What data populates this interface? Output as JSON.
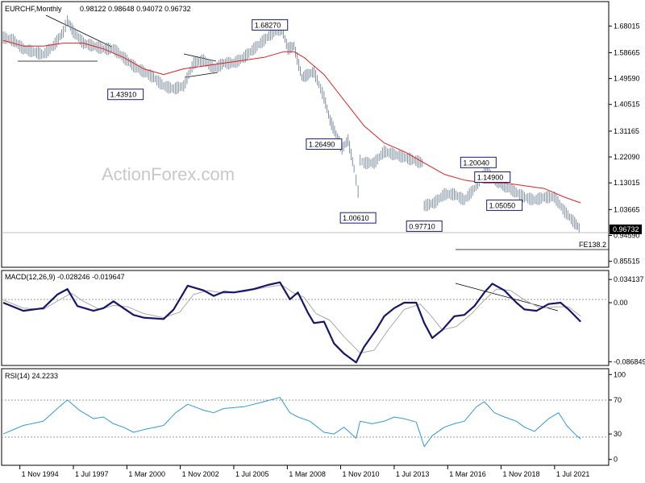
{
  "header": {
    "symbol": "EURCHF,Monthly",
    "ohlc": "0.98122 0.98648 0.94072 0.96732"
  },
  "watermark": "ActionForex.com",
  "colors": {
    "bars": "#8090a0",
    "ma": "#e02020",
    "macd": "#16166b",
    "signal": "#aaaaaa",
    "rsi": "#3399dd",
    "guide": "#999999",
    "label_border": "#1a1a7a"
  },
  "x_ticks": [
    "1 Nov 1994",
    "1 Jul 1997",
    "1 Mar 2000",
    "1 Nov 2002",
    "1 Jul 2005",
    "1 Mar 2008",
    "1 Nov 2010",
    "1 Jul 2013",
    "1 Mar 2016",
    "1 Nov 2018",
    "1 Jul 2021"
  ],
  "chart_data": [
    {
      "type": "line",
      "title": "EURCHF,Monthly",
      "y_ticks": [
        "1.68015",
        "1.58665",
        "1.49590",
        "1.40515",
        "1.31165",
        "1.22090",
        "1.13015",
        "1.03665",
        "0.94590",
        "0.85515"
      ],
      "ylim": [
        0.84,
        1.76
      ],
      "xlim": [
        1994.0,
        2024.0
      ],
      "current_price": "0.96732",
      "fe_label": "FE138.2",
      "fe_level": 0.914,
      "annotations": [
        {
          "label": "1.68270",
          "x": 2007.3,
          "y": 1.6827
        },
        {
          "label": "1.43910",
          "x": 2000.1,
          "y": 1.4391
        },
        {
          "label": "1.26490",
          "x": 2010.0,
          "y": 1.2649
        },
        {
          "label": "1.00610",
          "x": 2011.7,
          "y": 1.0061
        },
        {
          "label": "0.97710",
          "x": 2015.0,
          "y": 0.9771
        },
        {
          "label": "1.20040",
          "x": 2017.7,
          "y": 1.2004
        },
        {
          "label": "1.14900",
          "x": 2018.4,
          "y": 1.149
        },
        {
          "label": "1.05050",
          "x": 2019.0,
          "y": 1.0505
        }
      ],
      "series": [
        {
          "values": [
            [
              1994.0,
              1.64
            ],
            [
              1994.5,
              1.63
            ],
            [
              1995.0,
              1.6
            ],
            [
              1995.5,
              1.59
            ],
            [
              1996.0,
              1.58
            ],
            [
              1996.5,
              1.61
            ],
            [
              1997.0,
              1.66
            ],
            [
              1997.2,
              1.7
            ],
            [
              1997.5,
              1.66
            ],
            [
              1998.0,
              1.62
            ],
            [
              1998.5,
              1.61
            ],
            [
              1999.0,
              1.6
            ],
            [
              1999.5,
              1.6
            ],
            [
              2000.0,
              1.57
            ],
            [
              2000.5,
              1.54
            ],
            [
              2001.0,
              1.52
            ],
            [
              2001.5,
              1.5
            ],
            [
              2002.0,
              1.47
            ],
            [
              2002.5,
              1.46
            ],
            [
              2003.0,
              1.47
            ],
            [
              2003.5,
              1.55
            ],
            [
              2004.0,
              1.56
            ],
            [
              2004.5,
              1.53
            ],
            [
              2005.0,
              1.55
            ],
            [
              2005.5,
              1.55
            ],
            [
              2006.0,
              1.57
            ],
            [
              2006.5,
              1.6
            ],
            [
              2007.0,
              1.63
            ],
            [
              2007.5,
              1.66
            ],
            [
              2007.9,
              1.67
            ],
            [
              2008.2,
              1.6
            ],
            [
              2008.5,
              1.61
            ],
            [
              2008.9,
              1.5
            ],
            [
              2009.2,
              1.51
            ],
            [
              2009.5,
              1.52
            ],
            [
              2010.0,
              1.43
            ],
            [
              2010.3,
              1.35
            ],
            [
              2010.6,
              1.3
            ],
            [
              2010.9,
              1.25
            ],
            [
              2011.2,
              1.28
            ],
            [
              2011.5,
              1.18
            ],
            [
              2011.7,
              1.1
            ],
            [
              2011.8,
              1.21
            ],
            [
              2012.0,
              1.2
            ],
            [
              2012.5,
              1.2
            ],
            [
              2013.0,
              1.24
            ],
            [
              2013.5,
              1.23
            ],
            [
              2014.0,
              1.22
            ],
            [
              2014.5,
              1.21
            ],
            [
              2014.9,
              1.2
            ],
            [
              2015.0,
              1.05
            ],
            [
              2015.5,
              1.06
            ],
            [
              2016.0,
              1.09
            ],
            [
              2016.5,
              1.09
            ],
            [
              2017.0,
              1.07
            ],
            [
              2017.5,
              1.11
            ],
            [
              2018.0,
              1.17
            ],
            [
              2018.3,
              1.16
            ],
            [
              2018.7,
              1.13
            ],
            [
              2019.0,
              1.12
            ],
            [
              2019.5,
              1.1
            ],
            [
              2020.0,
              1.08
            ],
            [
              2020.5,
              1.07
            ],
            [
              2021.0,
              1.08
            ],
            [
              2021.5,
              1.08
            ],
            [
              2022.0,
              1.03
            ],
            [
              2022.5,
              0.99
            ],
            [
              2022.8,
              0.96732
            ]
          ]
        },
        {
          "values": [
            [
              1994.0,
              1.63
            ],
            [
              1995.0,
              1.61
            ],
            [
              1996.0,
              1.61
            ],
            [
              1997.0,
              1.62
            ],
            [
              1998.0,
              1.62
            ],
            [
              1999.0,
              1.6
            ],
            [
              2000.0,
              1.57
            ],
            [
              2001.0,
              1.53
            ],
            [
              2002.0,
              1.51
            ],
            [
              2003.0,
              1.53
            ],
            [
              2004.0,
              1.54
            ],
            [
              2005.0,
              1.55
            ],
            [
              2006.0,
              1.56
            ],
            [
              2007.0,
              1.57
            ],
            [
              2008.0,
              1.59
            ],
            [
              2008.5,
              1.59
            ],
            [
              2009.0,
              1.57
            ],
            [
              2010.0,
              1.51
            ],
            [
              2011.0,
              1.42
            ],
            [
              2012.0,
              1.33
            ],
            [
              2013.0,
              1.27
            ],
            [
              2014.0,
              1.24
            ],
            [
              2015.0,
              1.2
            ],
            [
              2016.0,
              1.16
            ],
            [
              2017.0,
              1.14
            ],
            [
              2018.0,
              1.13
            ],
            [
              2019.0,
              1.13
            ],
            [
              2020.0,
              1.12
            ],
            [
              2021.0,
              1.11
            ],
            [
              2022.0,
              1.08
            ],
            [
              2022.8,
              1.06
            ]
          ]
        }
      ]
    },
    {
      "type": "line",
      "title": "MACD(12,26,9) -0.028246 -0.019647",
      "y_ticks": [
        "0.034137",
        "0.00",
        "-0.086849"
      ],
      "ylim": [
        -0.09,
        0.045
      ],
      "series": [
        {
          "values": [
            [
              1994.0,
              0.0
            ],
            [
              1995.0,
              -0.012
            ],
            [
              1996.0,
              -0.008
            ],
            [
              1996.7,
              0.012
            ],
            [
              1997.2,
              0.02
            ],
            [
              1997.7,
              -0.005
            ],
            [
              1998.5,
              -0.012
            ],
            [
              1999.0,
              -0.008
            ],
            [
              1999.5,
              0.002
            ],
            [
              2000.0,
              -0.008
            ],
            [
              2000.5,
              -0.018
            ],
            [
              2001.0,
              -0.022
            ],
            [
              2002.0,
              -0.024
            ],
            [
              2002.5,
              -0.01
            ],
            [
              2003.2,
              0.025
            ],
            [
              2004.0,
              0.018
            ],
            [
              2004.5,
              0.01
            ],
            [
              2005.0,
              0.016
            ],
            [
              2005.5,
              0.015
            ],
            [
              2006.5,
              0.02
            ],
            [
              2007.2,
              0.026
            ],
            [
              2007.8,
              0.03
            ],
            [
              2008.3,
              0.005
            ],
            [
              2008.7,
              0.015
            ],
            [
              2009.2,
              -0.015
            ],
            [
              2009.5,
              -0.03
            ],
            [
              2010.0,
              -0.028
            ],
            [
              2010.5,
              -0.06
            ],
            [
              2011.0,
              -0.075
            ],
            [
              2011.6,
              -0.088
            ],
            [
              2012.0,
              -0.065
            ],
            [
              2012.6,
              -0.04
            ],
            [
              2013.0,
              -0.02
            ],
            [
              2013.5,
              -0.008
            ],
            [
              2014.0,
              0.0
            ],
            [
              2014.6,
              0.0
            ],
            [
              2015.0,
              -0.03
            ],
            [
              2015.4,
              -0.052
            ],
            [
              2015.9,
              -0.04
            ],
            [
              2016.5,
              -0.02
            ],
            [
              2017.0,
              -0.018
            ],
            [
              2017.5,
              -0.005
            ],
            [
              2018.0,
              0.015
            ],
            [
              2018.4,
              0.028
            ],
            [
              2019.0,
              0.018
            ],
            [
              2019.6,
              0.0
            ],
            [
              2020.0,
              -0.01
            ],
            [
              2020.6,
              -0.012
            ],
            [
              2021.2,
              -0.002
            ],
            [
              2021.8,
              0.0
            ],
            [
              2022.2,
              -0.01
            ],
            [
              2022.8,
              -0.028
            ]
          ]
        },
        {
          "values": [
            [
              1994.0,
              0.004
            ],
            [
              1995.0,
              -0.008
            ],
            [
              1996.0,
              -0.01
            ],
            [
              1996.8,
              0.004
            ],
            [
              1997.4,
              0.014
            ],
            [
              1998.0,
              0.002
            ],
            [
              1998.8,
              -0.01
            ],
            [
              1999.5,
              -0.004
            ],
            [
              2000.2,
              -0.006
            ],
            [
              2001.0,
              -0.016
            ],
            [
              2002.0,
              -0.022
            ],
            [
              2002.8,
              -0.014
            ],
            [
              2003.5,
              0.012
            ],
            [
              2004.2,
              0.018
            ],
            [
              2005.0,
              0.014
            ],
            [
              2006.0,
              0.016
            ],
            [
              2007.0,
              0.022
            ],
            [
              2007.9,
              0.026
            ],
            [
              2008.5,
              0.014
            ],
            [
              2009.0,
              0.008
            ],
            [
              2009.6,
              -0.016
            ],
            [
              2010.3,
              -0.026
            ],
            [
              2011.0,
              -0.05
            ],
            [
              2011.8,
              -0.074
            ],
            [
              2012.5,
              -0.07
            ],
            [
              2013.2,
              -0.04
            ],
            [
              2014.0,
              -0.01
            ],
            [
              2014.8,
              -0.002
            ],
            [
              2015.3,
              -0.018
            ],
            [
              2015.9,
              -0.04
            ],
            [
              2016.6,
              -0.035
            ],
            [
              2017.4,
              -0.015
            ],
            [
              2018.0,
              0.004
            ],
            [
              2018.6,
              0.02
            ],
            [
              2019.3,
              0.018
            ],
            [
              2020.0,
              0.004
            ],
            [
              2020.8,
              -0.008
            ],
            [
              2021.5,
              -0.006
            ],
            [
              2022.2,
              -0.006
            ],
            [
              2022.8,
              -0.02
            ]
          ]
        }
      ]
    },
    {
      "type": "line",
      "title": "RSI(14) 24.2233",
      "y_ticks": [
        "100",
        "70",
        "30",
        "0"
      ],
      "ylim": [
        -5,
        105
      ],
      "series": [
        {
          "values": [
            [
              1994.0,
              30
            ],
            [
              1995.0,
              40
            ],
            [
              1996.0,
              45
            ],
            [
              1996.7,
              60
            ],
            [
              1997.2,
              70
            ],
            [
              1997.8,
              58
            ],
            [
              1998.5,
              48
            ],
            [
              1999.0,
              50
            ],
            [
              1999.5,
              42
            ],
            [
              2000.0,
              38
            ],
            [
              2000.5,
              32
            ],
            [
              2001.0,
              35
            ],
            [
              2002.0,
              40
            ],
            [
              2002.6,
              55
            ],
            [
              2003.2,
              65
            ],
            [
              2004.0,
              58
            ],
            [
              2004.5,
              55
            ],
            [
              2005.0,
              60
            ],
            [
              2006.0,
              62
            ],
            [
              2007.0,
              68
            ],
            [
              2007.8,
              73
            ],
            [
              2008.3,
              55
            ],
            [
              2008.7,
              50
            ],
            [
              2009.3,
              45
            ],
            [
              2010.0,
              32
            ],
            [
              2010.5,
              30
            ],
            [
              2011.0,
              38
            ],
            [
              2011.6,
              25
            ],
            [
              2011.8,
              45
            ],
            [
              2012.4,
              42
            ],
            [
              2013.0,
              45
            ],
            [
              2013.5,
              50
            ],
            [
              2014.0,
              48
            ],
            [
              2014.6,
              44
            ],
            [
              2015.0,
              15
            ],
            [
              2015.4,
              28
            ],
            [
              2016.0,
              38
            ],
            [
              2016.5,
              42
            ],
            [
              2017.0,
              45
            ],
            [
              2017.6,
              62
            ],
            [
              2018.0,
              68
            ],
            [
              2018.5,
              55
            ],
            [
              2019.0,
              50
            ],
            [
              2019.6,
              45
            ],
            [
              2020.0,
              38
            ],
            [
              2020.5,
              33
            ],
            [
              2021.2,
              48
            ],
            [
              2021.7,
              55
            ],
            [
              2022.1,
              40
            ],
            [
              2022.6,
              28
            ],
            [
              2022.8,
              24.2
            ]
          ]
        }
      ]
    }
  ]
}
